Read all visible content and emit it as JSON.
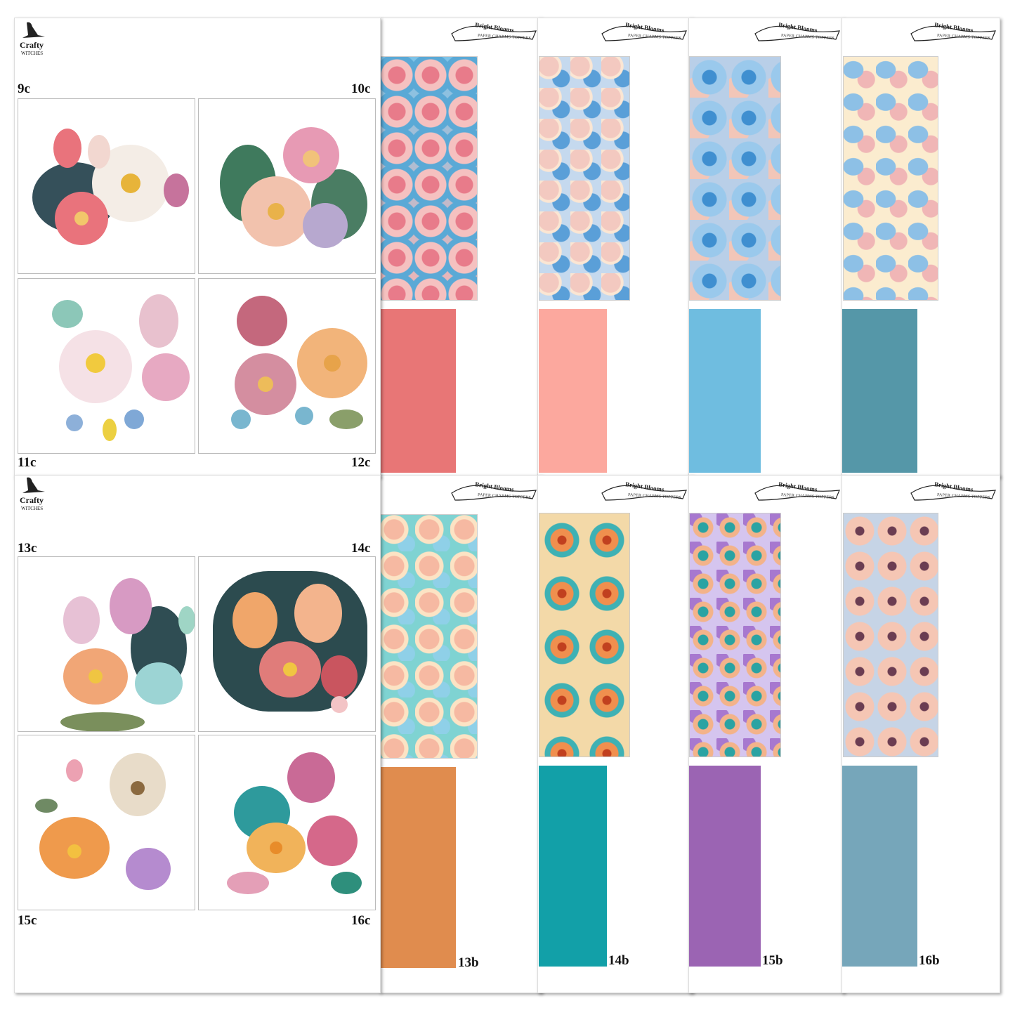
{
  "brand": {
    "logo_line1": "Crafty",
    "logo_line2": "WITCHES"
  },
  "banner": {
    "title": "Bright Blooms",
    "subtitle": "PAPER CHARMS TOPPERS"
  },
  "tiles": {
    "top": [
      "9c",
      "10c",
      "11c",
      "12c"
    ],
    "bottom": [
      "13c",
      "14c",
      "15c",
      "16c"
    ]
  },
  "bottom_labels": [
    "13b",
    "14b",
    "15b",
    "16b"
  ],
  "colors": {
    "row1_swatches": [
      "#e87676",
      "#fca89e",
      "#6fbde0",
      "#5597a8"
    ],
    "row2_swatches": [
      "#e08c4e",
      "#12a0a8",
      "#9b64b3",
      "#76a6ba"
    ]
  }
}
